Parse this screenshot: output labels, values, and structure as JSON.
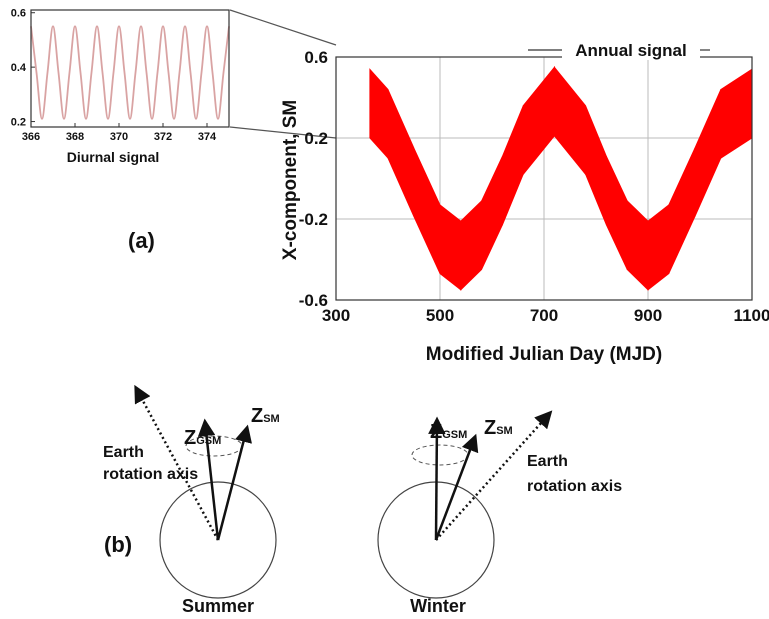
{
  "chart_data": [
    {
      "type": "band",
      "x_label": "Modified Julian Day (MJD)",
      "y_label": "X-component, SM",
      "annotation": "Annual signal",
      "x": [
        365,
        400,
        450,
        500,
        540,
        580,
        620,
        660,
        720,
        780,
        820,
        860,
        900,
        940,
        990,
        1040,
        1100
      ],
      "series": [
        {
          "color": "#ff0000",
          "values": [
            0.54,
            0.44,
            0.15,
            -0.13,
            -0.21,
            -0.11,
            0.11,
            0.36,
            0.55,
            0.36,
            0.11,
            -0.11,
            -0.21,
            -0.13,
            0.15,
            0.44,
            0.54
          ]
        },
        {
          "color": "#ff0000",
          "values": [
            0.2,
            0.1,
            -0.19,
            -0.47,
            -0.55,
            -0.45,
            -0.23,
            0.02,
            0.21,
            0.02,
            -0.23,
            -0.45,
            -0.55,
            -0.47,
            -0.19,
            0.1,
            0.2
          ]
        }
      ],
      "xlim": [
        300,
        1100
      ],
      "ylim": [
        -0.6,
        0.6
      ],
      "xticks": [
        300,
        500,
        700,
        900,
        1100
      ],
      "yticks": [
        -0.6,
        -0.2,
        0.2,
        0.6
      ],
      "grid": true
    },
    {
      "type": "line",
      "x_label": "Diurnal signal",
      "x": [
        366,
        366.25,
        366.5,
        366.75,
        367,
        367.25,
        367.5,
        367.75,
        368,
        368.25,
        368.5,
        368.75,
        369,
        369.25,
        369.5,
        369.75,
        370,
        370.25,
        370.5,
        370.75,
        371,
        371.25,
        371.5,
        371.75,
        372,
        372.25,
        372.5,
        372.75,
        373,
        373.25,
        373.5,
        373.75,
        374,
        374.25,
        374.5,
        374.75,
        375
      ],
      "values": [
        0.55,
        0.38,
        0.21,
        0.38,
        0.55,
        0.38,
        0.21,
        0.38,
        0.55,
        0.38,
        0.21,
        0.38,
        0.55,
        0.38,
        0.21,
        0.38,
        0.55,
        0.38,
        0.21,
        0.38,
        0.55,
        0.38,
        0.21,
        0.38,
        0.55,
        0.38,
        0.21,
        0.38,
        0.55,
        0.38,
        0.21,
        0.38,
        0.55,
        0.38,
        0.21,
        0.38,
        0.55
      ],
      "color": "#d9a3a3",
      "xlim": [
        366,
        375
      ],
      "ylim": [
        0.18,
        0.61
      ],
      "xticks": [
        366,
        368,
        370,
        372,
        374
      ],
      "yticks": [
        0.2,
        0.4,
        0.6
      ],
      "grid": false
    }
  ],
  "panel_labels": [
    "(a)",
    "(b)"
  ],
  "diagram": {
    "summer": {
      "season": "Summer",
      "z_gsm": {
        "symbol": "Z",
        "subscript": "GSM"
      },
      "z_sm": {
        "symbol": "Z",
        "subscript": "SM"
      },
      "axis_label": [
        "Earth",
        "rotation axis"
      ]
    },
    "winter": {
      "season": "Winter",
      "z_gsm": {
        "symbol": "Z",
        "subscript": "GSM"
      },
      "z_sm": {
        "symbol": "Z",
        "subscript": "SM"
      },
      "axis_label": [
        "Earth",
        "rotation axis"
      ]
    }
  }
}
